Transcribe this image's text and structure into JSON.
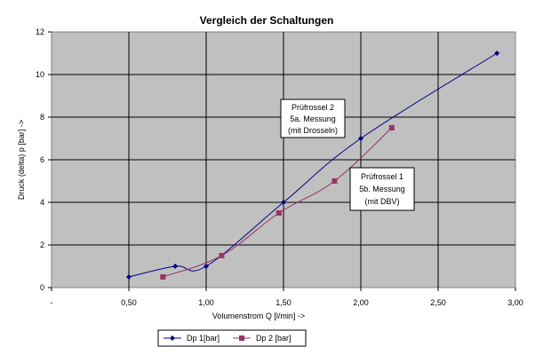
{
  "chart_data": {
    "type": "scatter",
    "title": "Vergleich der Schaltungen",
    "xlabel": "Volumenstrom Q [l/min] ->",
    "ylabel": "Druck (delta) p [bar] ->",
    "xlim": [
      0,
      3
    ],
    "ylim": [
      0,
      12
    ],
    "x_tick_labels": [
      "-",
      "0,50",
      "1,00",
      "1,50",
      "2,00",
      "2,50",
      "3,00"
    ],
    "y_tick_labels": [
      "0",
      "2",
      "4",
      "6",
      "8",
      "10",
      "12"
    ],
    "grid": true,
    "legend_position": "bottom-left",
    "plot_background": "#c0c0c0",
    "series": [
      {
        "name": "Dp 1[bar]",
        "color": "#000080",
        "marker": "diamond",
        "points": [
          [
            0.5,
            0.5
          ],
          [
            0.8,
            1.0
          ],
          [
            1.0,
            1.0
          ],
          [
            1.5,
            4.0
          ],
          [
            2.0,
            7.0
          ],
          [
            2.88,
            11.0
          ]
        ]
      },
      {
        "name": "Dp 2 [bar]",
        "color": "#993366",
        "marker": "square",
        "points": [
          [
            0.72,
            0.5
          ],
          [
            1.1,
            1.5
          ],
          [
            1.47,
            3.5
          ],
          [
            1.83,
            5.0
          ],
          [
            2.2,
            7.5
          ]
        ]
      }
    ],
    "annotations": [
      {
        "lines": [
          "Prüfrossel 2",
          "5a. Messung",
          "(mit Drosseln)"
        ]
      },
      {
        "lines": [
          "Prüfrossel 1",
          "5b. Messung",
          "(mit DBV)"
        ]
      }
    ]
  }
}
